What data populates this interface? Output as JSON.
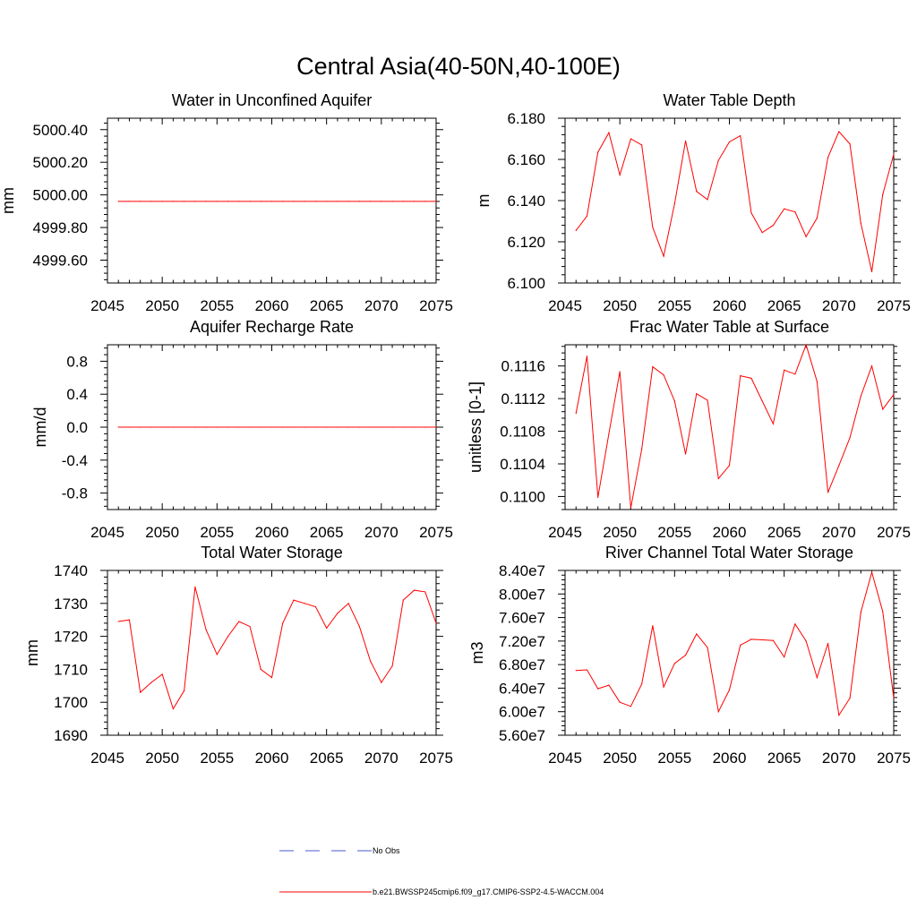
{
  "title": "Central Asia(40-50N,40-100E)",
  "colors": {
    "model": "#ff0000",
    "obs": "#4a5ad6",
    "axis": "#000000"
  },
  "legend": {
    "items": [
      {
        "label": "No Obs",
        "style": "dashed",
        "color": "#4a5ad6"
      },
      {
        "label": "b.e21.BWSSP245cmip6.f09_g17.CMIP6-SSP2-4.5-WACCM.004",
        "style": "solid",
        "color": "#ff0000"
      }
    ]
  },
  "chart_data": [
    {
      "type": "line",
      "title": "Water in Unconfined Aquifer",
      "ylabel": "mm",
      "xlim": [
        2045,
        2075
      ],
      "ylim": [
        4999.46,
        5000.47
      ],
      "xticks": [
        2045,
        2050,
        2055,
        2060,
        2065,
        2070,
        2075
      ],
      "yticks": [
        4999.6,
        4999.8,
        5000.0,
        5000.2,
        5000.4
      ],
      "ytick_labels": [
        "4999.60",
        "4999.80",
        "5000.00",
        "5000.20",
        "5000.40"
      ],
      "yminor": 0.04,
      "x": [
        2046,
        2047,
        2048,
        2049,
        2050,
        2051,
        2052,
        2053,
        2054,
        2055,
        2056,
        2057,
        2058,
        2059,
        2060,
        2061,
        2062,
        2063,
        2064,
        2065,
        2066,
        2067,
        2068,
        2069,
        2070,
        2071,
        2072,
        2073,
        2074,
        2075
      ],
      "series": [
        {
          "values": [
            4999.96,
            4999.96,
            4999.96,
            4999.96,
            4999.96,
            4999.96,
            4999.96,
            4999.96,
            4999.96,
            4999.96,
            4999.96,
            4999.96,
            4999.96,
            4999.96,
            4999.96,
            4999.96,
            4999.96,
            4999.96,
            4999.96,
            4999.96,
            4999.96,
            4999.96,
            4999.96,
            4999.96,
            4999.96,
            4999.96,
            4999.96,
            4999.96,
            4999.96,
            4999.96
          ]
        }
      ]
    },
    {
      "type": "line",
      "title": "Water Table Depth",
      "ylabel": "m",
      "xlim": [
        2045,
        2075
      ],
      "ylim": [
        6.1,
        6.18
      ],
      "xticks": [
        2045,
        2050,
        2055,
        2060,
        2065,
        2070,
        2075
      ],
      "yticks": [
        6.1,
        6.12,
        6.14,
        6.16,
        6.18
      ],
      "ytick_labels": [
        "6.100",
        "6.120",
        "6.140",
        "6.160",
        "6.180"
      ],
      "yminor": 0.004,
      "x": [
        2046,
        2047,
        2048,
        2049,
        2050,
        2051,
        2052,
        2053,
        2054,
        2055,
        2056,
        2057,
        2058,
        2059,
        2060,
        2061,
        2062,
        2063,
        2064,
        2065,
        2066,
        2067,
        2068,
        2069,
        2070,
        2071,
        2072,
        2073,
        2074,
        2075
      ],
      "series": [
        {
          "values": [
            6.1255,
            6.1325,
            6.1635,
            6.173,
            6.1525,
            6.17,
            6.167,
            6.127,
            6.113,
            6.1385,
            6.169,
            6.1445,
            6.1405,
            6.1595,
            6.1685,
            6.1715,
            6.134,
            6.1245,
            6.128,
            6.136,
            6.1345,
            6.1225,
            6.1315,
            6.161,
            6.1735,
            6.1675,
            6.129,
            6.1055,
            6.143,
            6.1625
          ]
        }
      ]
    },
    {
      "type": "line",
      "title": "Aquifer Recharge Rate",
      "ylabel": "mm/d",
      "xlim": [
        2045,
        2075
      ],
      "ylim": [
        -1.0,
        1.0
      ],
      "xticks": [
        2045,
        2050,
        2055,
        2060,
        2065,
        2070,
        2075
      ],
      "yticks": [
        -0.8,
        -0.4,
        0.0,
        0.4,
        0.8
      ],
      "ytick_labels": [
        "-0.8",
        "-0.4",
        "0.0",
        "0.4",
        "0.8"
      ],
      "yminor": 0.08,
      "x": [
        2046,
        2047,
        2048,
        2049,
        2050,
        2051,
        2052,
        2053,
        2054,
        2055,
        2056,
        2057,
        2058,
        2059,
        2060,
        2061,
        2062,
        2063,
        2064,
        2065,
        2066,
        2067,
        2068,
        2069,
        2070,
        2071,
        2072,
        2073,
        2074,
        2075
      ],
      "series": [
        {
          "values": [
            0,
            0,
            0,
            0,
            0,
            0,
            0,
            0,
            0,
            0,
            0,
            0,
            0,
            0,
            0,
            0,
            0,
            0,
            0,
            0,
            0,
            0,
            0,
            0,
            0,
            0,
            0,
            0,
            0,
            0
          ]
        }
      ]
    },
    {
      "type": "line",
      "title": "Frac Water Table at Surface",
      "ylabel": "unitless [0-1]",
      "xlim": [
        2045,
        2075
      ],
      "ylim": [
        0.10984,
        0.11186
      ],
      "xticks": [
        2045,
        2050,
        2055,
        2060,
        2065,
        2070,
        2075
      ],
      "yticks": [
        0.11,
        0.1104,
        0.1108,
        0.1112,
        0.1116
      ],
      "ytick_labels": [
        "0.1100",
        "0.1104",
        "0.1108",
        "0.1112",
        "0.1116"
      ],
      "yminor": 8e-05,
      "x": [
        2046,
        2047,
        2048,
        2049,
        2050,
        2051,
        2052,
        2053,
        2054,
        2055,
        2056,
        2057,
        2058,
        2059,
        2060,
        2061,
        2062,
        2063,
        2064,
        2065,
        2066,
        2067,
        2068,
        2069,
        2070,
        2071,
        2072,
        2073,
        2074,
        2075
      ],
      "series": [
        {
          "values": [
            0.11102,
            0.11172,
            0.10999,
            0.11077,
            0.11153,
            0.10986,
            0.11058,
            0.11159,
            0.11149,
            0.11117,
            0.11052,
            0.11126,
            0.11118,
            0.11022,
            0.11038,
            0.11148,
            0.11145,
            0.11117,
            0.11089,
            0.11155,
            0.1115,
            0.11186,
            0.11141,
            0.11005,
            0.11038,
            0.11072,
            0.11123,
            0.1116,
            0.11107,
            0.11125
          ]
        }
      ]
    },
    {
      "type": "line",
      "title": "Total Water Storage",
      "ylabel": "mm",
      "xlim": [
        2045,
        2075
      ],
      "ylim": [
        1690,
        1740
      ],
      "xticks": [
        2045,
        2050,
        2055,
        2060,
        2065,
        2070,
        2075
      ],
      "yticks": [
        1690,
        1700,
        1710,
        1720,
        1730,
        1740
      ],
      "ytick_labels": [
        "1690",
        "1700",
        "1710",
        "1720",
        "1730",
        "1740"
      ],
      "yminor": 2,
      "x": [
        2046,
        2047,
        2048,
        2049,
        2050,
        2051,
        2052,
        2053,
        2054,
        2055,
        2056,
        2057,
        2058,
        2059,
        2060,
        2061,
        2062,
        2063,
        2064,
        2065,
        2066,
        2067,
        2068,
        2069,
        2070,
        2071,
        2072,
        2073,
        2074,
        2075
      ],
      "series": [
        {
          "values": [
            1724.5,
            1725.0,
            1703.0,
            1706.0,
            1708.5,
            1698.0,
            1703.5,
            1735.0,
            1722.0,
            1714.5,
            1720.0,
            1724.5,
            1723.0,
            1710.0,
            1707.5,
            1724.0,
            1731.0,
            1730.0,
            1729.0,
            1722.5,
            1727.0,
            1730.0,
            1723.0,
            1712.5,
            1706.0,
            1711.0,
            1731.0,
            1734.0,
            1733.5,
            1724.0
          ]
        }
      ]
    },
    {
      "type": "line",
      "title": "River Channel Total Water Storage",
      "ylabel": "m3",
      "xlim": [
        2045,
        2075
      ],
      "ylim": [
        56000000,
        84000000
      ],
      "xticks": [
        2045,
        2050,
        2055,
        2060,
        2065,
        2070,
        2075
      ],
      "yticks": [
        56000000,
        60000000,
        64000000,
        68000000,
        72000000,
        76000000,
        80000000,
        84000000
      ],
      "ytick_labels": [
        "5.60e7",
        "6.00e7",
        "6.40e7",
        "6.80e7",
        "7.20e7",
        "7.60e7",
        "8.00e7",
        "8.40e7"
      ],
      "yminor": 800000,
      "x": [
        2046,
        2047,
        2048,
        2049,
        2050,
        2051,
        2052,
        2053,
        2054,
        2055,
        2056,
        2057,
        2058,
        2059,
        2060,
        2061,
        2062,
        2063,
        2064,
        2065,
        2066,
        2067,
        2068,
        2069,
        2070,
        2071,
        2072,
        2073,
        2074,
        2075
      ],
      "series": [
        {
          "values": [
            67000000,
            67100000,
            63900000,
            64500000,
            61600000,
            60900000,
            64700000,
            74600000,
            64200000,
            68200000,
            69600000,
            73200000,
            70900000,
            60000000,
            63700000,
            71300000,
            72300000,
            72200000,
            72100000,
            69300000,
            74900000,
            72000000,
            65800000,
            71600000,
            59400000,
            62300000,
            76900000,
            83700000,
            77000000,
            62300000
          ]
        }
      ]
    }
  ]
}
